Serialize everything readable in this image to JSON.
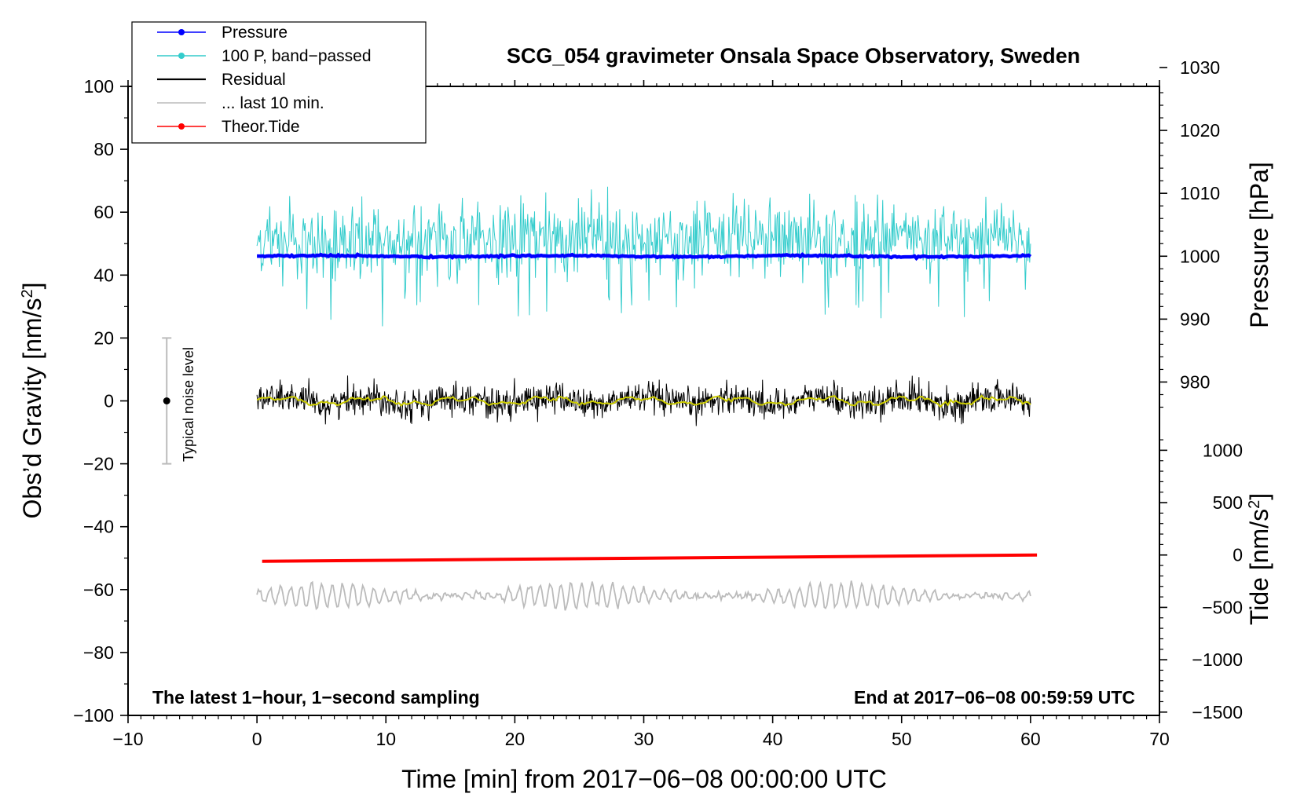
{
  "chart_data": {
    "type": "line",
    "title": "SCG_054 gravimeter Onsala Space Observatory, Sweden",
    "xlabel": "Time [min] from 2017−06−08 00:00:00 UTC",
    "ylabel_left": "Obs’d Gravity [nm/s",
    "ylabel_left_sup": "2",
    "ylabel_left_end": "]",
    "ylabel_right_pressure": "Pressure [hPa]",
    "ylabel_right_tide": "Tide [nm/s",
    "ylabel_right_tide_sup": "2",
    "ylabel_right_tide_end": "]",
    "xlim": [
      -10,
      70
    ],
    "ylim": [
      -100,
      100
    ],
    "x_ticks": [
      -10,
      0,
      10,
      20,
      30,
      40,
      50,
      60,
      70
    ],
    "x_tick_labels": [
      "−10",
      "0",
      "10",
      "20",
      "30",
      "40",
      "50",
      "60",
      "70"
    ],
    "y_ticks": [
      -100,
      -80,
      -60,
      -40,
      -20,
      0,
      20,
      40,
      60,
      80,
      100
    ],
    "y_tick_labels": [
      "−100",
      "−80",
      "−60",
      "−40",
      "−20",
      "0",
      "20",
      "40",
      "60",
      "80",
      "100"
    ],
    "pressure_axis": {
      "ticks": [
        980,
        990,
        1000,
        1010,
        1020,
        1030
      ],
      "tick_labels": [
        "980",
        "990",
        "1000",
        "1010",
        "1020",
        "1030"
      ],
      "gravity_at_1000": 46,
      "gravity_per_hpa": 2.0
    },
    "tide_axis": {
      "ticks": [
        -1500,
        -1000,
        -500,
        0,
        500,
        1000
      ],
      "tick_labels": [
        "−1500",
        "−1000",
        "−500",
        "0",
        "500",
        "1000"
      ],
      "gravity_at_0": -49,
      "gravity_per_unit": 0.0333
    },
    "series": [
      {
        "name": "Pressure",
        "color": "#0000ff",
        "kind": "line+markers",
        "x_range": [
          0,
          60
        ],
        "level": 46,
        "noise": 0.35
      },
      {
        "name": "100 P, band−passed",
        "color": "#33cccc",
        "kind": "line",
        "x_range": [
          0,
          60
        ],
        "level": 51,
        "amplitude": 10,
        "min": 23,
        "max": 69
      },
      {
        "name": "Residual",
        "color": "#000000",
        "kind": "line",
        "x_range": [
          0,
          60
        ],
        "level": 0,
        "amplitude": 4,
        "min": -8,
        "max": 10
      },
      {
        "name": "... last 10 min.",
        "color": "#bbbbbb",
        "kind": "line",
        "x_range": [
          0,
          60
        ],
        "level": -62,
        "amplitude": 3.5,
        "min": -68,
        "max": -56
      },
      {
        "name": "Theor.Tide",
        "color": "#ff0000",
        "kind": "line+markers",
        "x_range": [
          0,
          60.5
        ],
        "start": -51,
        "end": -49
      }
    ],
    "smoothed_residual": {
      "color": "#cccc00",
      "level": 0,
      "amplitude": 1.5
    },
    "noise_bar": {
      "label": "Typical noise level",
      "x": -7,
      "center": 0,
      "low": -20,
      "high": 20
    },
    "annotations": {
      "left": "The latest 1−hour, 1−second sampling",
      "right": "End at 2017−06−08 00:59:59 UTC"
    },
    "legend_position": "top-left"
  }
}
